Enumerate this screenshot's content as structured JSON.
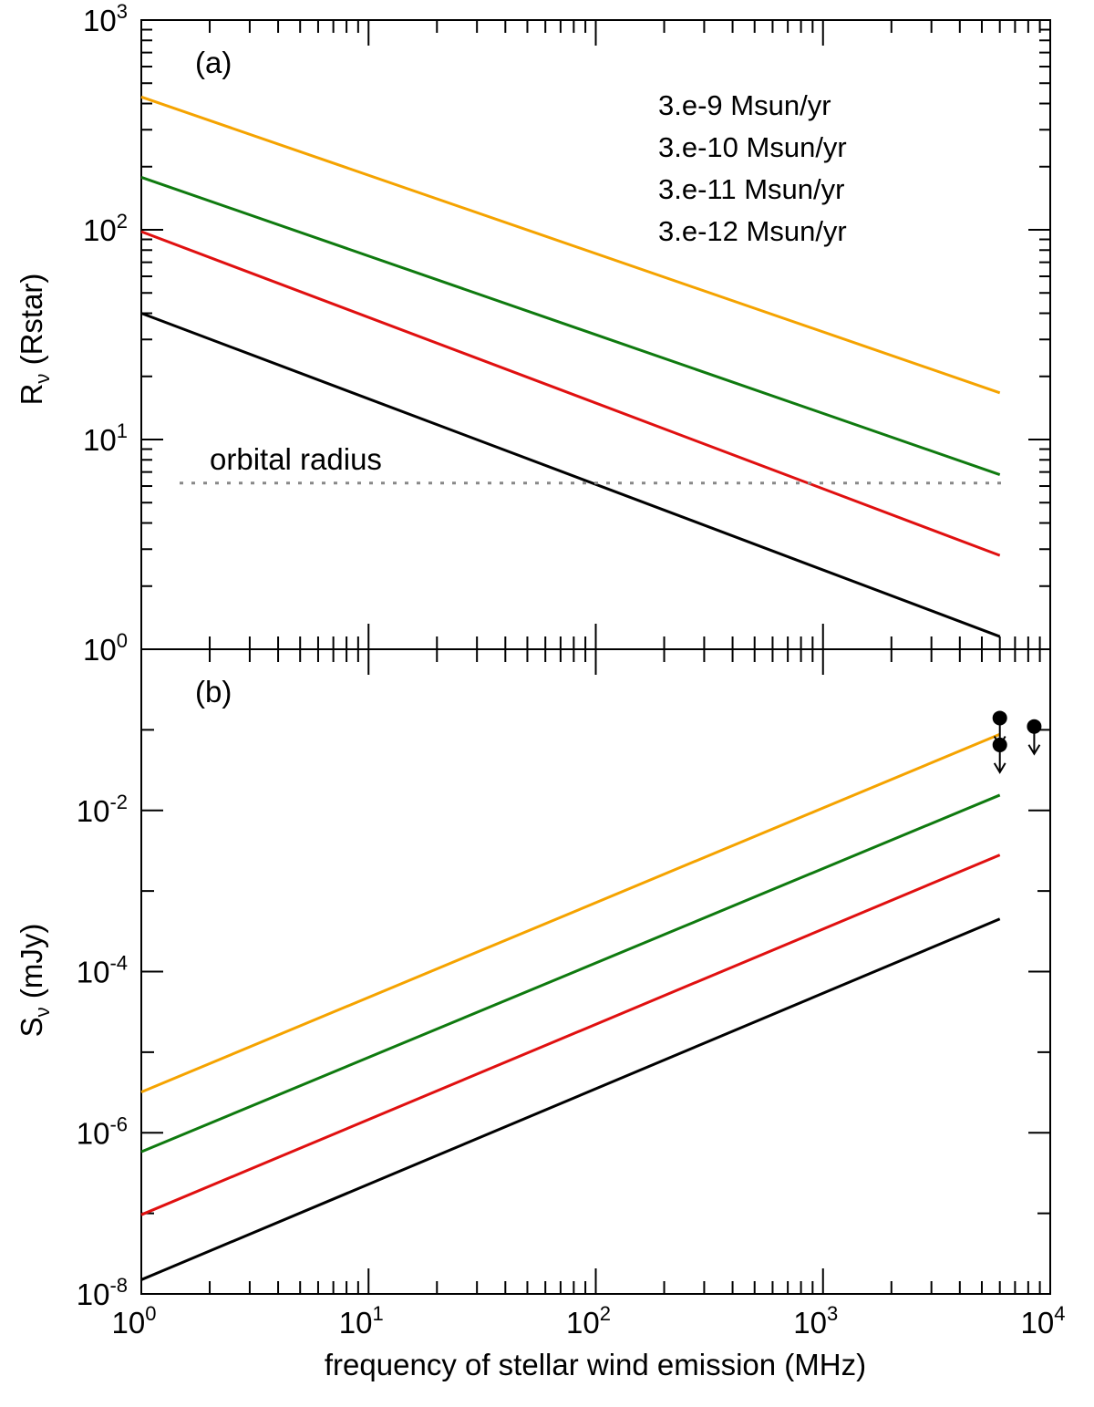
{
  "chart_data": [
    {
      "panel": "(a)",
      "type": "line",
      "xscale": "log",
      "yscale": "log",
      "xlim": [
        1,
        10000
      ],
      "ylim": [
        1,
        1000
      ],
      "ylabel_main": "R",
      "ylabel_sub": "ν",
      "ylabel_rest": " (Rstar)",
      "yticks": [
        {
          "base": "10",
          "exp": "0",
          "value": 1
        },
        {
          "base": "10",
          "exp": "1",
          "value": 10
        },
        {
          "base": "10",
          "exp": "2",
          "value": 100
        },
        {
          "base": "10",
          "exp": "3",
          "value": 1000
        }
      ],
      "series": [
        {
          "name": "3.e-9 Msun/yr",
          "color": "#f5a300",
          "x": [
            1,
            6000
          ],
          "y": [
            430,
            16.7
          ]
        },
        {
          "name": "3.e-10 Msun/yr",
          "color": "#0f7a0f",
          "x": [
            1,
            6000
          ],
          "y": [
            178,
            6.8
          ]
        },
        {
          "name": "3.e-11 Msun/yr",
          "color": "#e01010",
          "x": [
            1,
            6000
          ],
          "y": [
            98,
            2.8
          ]
        },
        {
          "name": "3.e-12 Msun/yr",
          "color": "#000000",
          "x": [
            1,
            6000
          ],
          "y": [
            40,
            1.15
          ]
        }
      ],
      "reference_line": {
        "label": "orbital radius",
        "y": 6.2,
        "color": "#888888"
      },
      "legend_position": "top-right"
    },
    {
      "panel": "(b)",
      "type": "line",
      "xscale": "log",
      "yscale": "log",
      "xlim": [
        1,
        10000
      ],
      "ylim": [
        1e-08,
        1
      ],
      "ylabel_main": "S",
      "ylabel_sub": "ν",
      "ylabel_rest": " (mJy)",
      "xlabel": "frequency of stellar wind emission (MHz)",
      "xticks": [
        {
          "base": "10",
          "exp": "0",
          "value": 1
        },
        {
          "base": "10",
          "exp": "1",
          "value": 10
        },
        {
          "base": "10",
          "exp": "2",
          "value": 100
        },
        {
          "base": "10",
          "exp": "3",
          "value": 1000
        },
        {
          "base": "10",
          "exp": "4",
          "value": 10000
        }
      ],
      "yticks": [
        {
          "base": "10",
          "exp": "-2",
          "value": 0.01
        },
        {
          "base": "10",
          "exp": "-4",
          "value": 0.0001
        },
        {
          "base": "10",
          "exp": "-6",
          "value": 1e-06
        },
        {
          "base": "10",
          "exp": "-8",
          "value": 1e-08
        }
      ],
      "series": [
        {
          "name": "3.e-9 Msun/yr",
          "color": "#f5a300",
          "x": [
            1,
            6000
          ],
          "y": [
            3.2e-06,
            0.088
          ]
        },
        {
          "name": "3.e-10 Msun/yr",
          "color": "#0f7a0f",
          "x": [
            1,
            6000
          ],
          "y": [
            5.8e-07,
            0.0155
          ]
        },
        {
          "name": "3.e-11 Msun/yr",
          "color": "#e01010",
          "x": [
            1,
            6000
          ],
          "y": [
            9.6e-08,
            0.0028
          ]
        },
        {
          "name": "3.e-12 Msun/yr",
          "color": "#000000",
          "x": [
            1,
            6000
          ],
          "y": [
            1.5e-08,
            0.00045
          ]
        }
      ],
      "upper_limits": [
        {
          "x": 6000,
          "y": 0.14
        },
        {
          "x": 6000,
          "y": 0.065
        },
        {
          "x": 8500,
          "y": 0.11
        }
      ]
    }
  ]
}
